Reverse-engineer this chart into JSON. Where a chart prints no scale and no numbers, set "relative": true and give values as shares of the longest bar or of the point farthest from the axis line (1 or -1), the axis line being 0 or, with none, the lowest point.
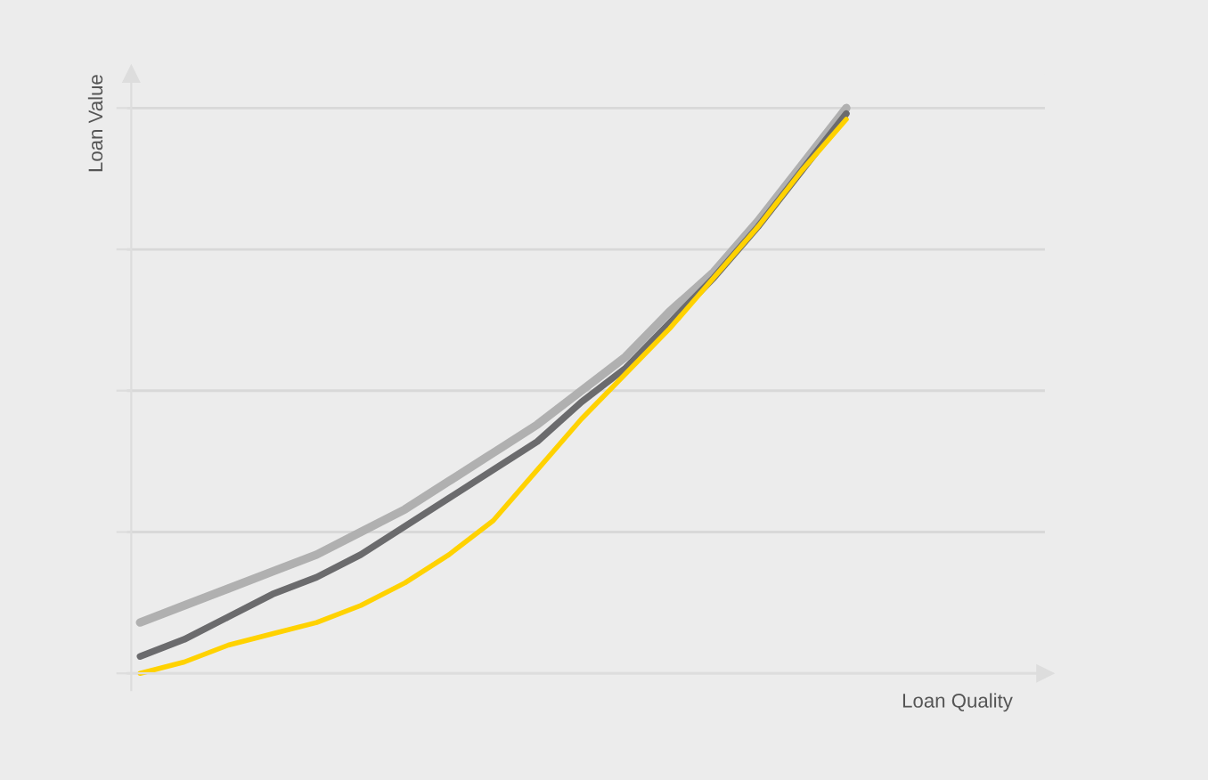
{
  "chart_data": {
    "type": "line",
    "relative": true,
    "xlabel": "Loan Quality",
    "ylabel": "Loan Value",
    "grid": "y",
    "marker": "none",
    "line_style": "solid",
    "categories": [
      null,
      null,
      null,
      null,
      null,
      null,
      null,
      null,
      null,
      null,
      null,
      null,
      null,
      null,
      null,
      null,
      null
    ],
    "series": [
      {
        "color": "#b0b0b0",
        "values": [
          0.09,
          0.12,
          0.15,
          0.18,
          0.21,
          0.25,
          0.29,
          0.34,
          0.39,
          0.44,
          0.5,
          0.56,
          0.64,
          0.71,
          0.8,
          0.9,
          1.0
        ]
      },
      {
        "color": "#6b6b6d",
        "values": [
          0.03,
          0.06,
          0.1,
          0.14,
          0.17,
          0.21,
          0.26,
          0.31,
          0.36,
          0.41,
          0.48,
          0.54,
          0.62,
          0.7,
          0.79,
          0.89,
          0.99
        ]
      },
      {
        "color": "#ffd200",
        "values": [
          0,
          0.02,
          0.05,
          0.07,
          0.09,
          0.12,
          0.16,
          0.21,
          0.27,
          0.36,
          0.45,
          0.53,
          0.61,
          0.7,
          0.79,
          0.89,
          0.98
        ]
      }
    ]
  }
}
